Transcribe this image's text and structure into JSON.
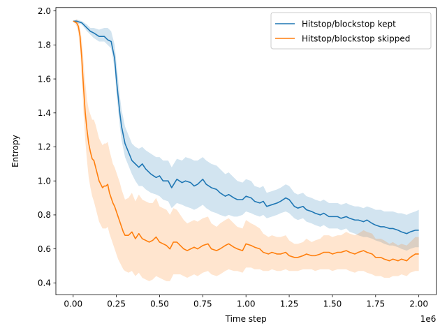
{
  "chart_data": {
    "type": "line",
    "title": "",
    "xlabel": "Time step",
    "ylabel": "Entropy",
    "x_offset_label": "1e6",
    "x_scale": 1000000,
    "xlim": [
      -0.1,
      2.1
    ],
    "ylim": [
      0.33,
      2.02
    ],
    "x_ticks": [
      0.0,
      0.25,
      0.5,
      0.75,
      1.0,
      1.25,
      1.5,
      1.75,
      2.0
    ],
    "x_tick_labels": [
      "0.00",
      "0.25",
      "0.50",
      "0.75",
      "1.00",
      "1.25",
      "1.50",
      "1.75",
      "2.00"
    ],
    "y_ticks": [
      0.4,
      0.6,
      0.8,
      1.0,
      1.2,
      1.4,
      1.6,
      1.8,
      2.0
    ],
    "y_tick_labels": [
      "0.4",
      "0.6",
      "0.8",
      "1.0",
      "1.2",
      "1.4",
      "1.6",
      "1.8",
      "2.0"
    ],
    "grid": false,
    "legend_position": "top-right",
    "series": [
      {
        "name": "Hitstop/blockstop kept",
        "color": "#1f77b4",
        "band_color": "#1f77b4",
        "x": [
          0.0,
          0.02,
          0.05,
          0.08,
          0.1,
          0.12,
          0.15,
          0.18,
          0.2,
          0.22,
          0.24,
          0.25,
          0.26,
          0.27,
          0.28,
          0.29,
          0.3,
          0.32,
          0.34,
          0.36,
          0.38,
          0.4,
          0.42,
          0.45,
          0.48,
          0.5,
          0.52,
          0.55,
          0.57,
          0.6,
          0.63,
          0.65,
          0.68,
          0.7,
          0.72,
          0.75,
          0.77,
          0.8,
          0.83,
          0.85,
          0.88,
          0.9,
          0.93,
          0.95,
          0.98,
          1.0,
          1.03,
          1.05,
          1.08,
          1.1,
          1.12,
          1.15,
          1.18,
          1.2,
          1.23,
          1.25,
          1.28,
          1.3,
          1.33,
          1.35,
          1.38,
          1.4,
          1.43,
          1.45,
          1.48,
          1.5,
          1.53,
          1.55,
          1.58,
          1.6,
          1.63,
          1.65,
          1.68,
          1.7,
          1.73,
          1.75,
          1.78,
          1.8,
          1.83,
          1.85,
          1.88,
          1.9,
          1.93,
          1.95,
          1.98,
          2.0
        ],
        "y": [
          1.94,
          1.94,
          1.93,
          1.9,
          1.88,
          1.87,
          1.85,
          1.85,
          1.83,
          1.82,
          1.72,
          1.6,
          1.5,
          1.4,
          1.32,
          1.27,
          1.22,
          1.17,
          1.12,
          1.1,
          1.08,
          1.1,
          1.07,
          1.04,
          1.02,
          1.03,
          1.0,
          1.0,
          0.96,
          1.01,
          0.99,
          1.0,
          0.99,
          0.97,
          0.98,
          1.01,
          0.98,
          0.96,
          0.95,
          0.93,
          0.91,
          0.92,
          0.9,
          0.89,
          0.89,
          0.91,
          0.9,
          0.88,
          0.87,
          0.88,
          0.85,
          0.86,
          0.87,
          0.88,
          0.9,
          0.89,
          0.85,
          0.84,
          0.85,
          0.83,
          0.82,
          0.81,
          0.8,
          0.81,
          0.79,
          0.79,
          0.79,
          0.78,
          0.79,
          0.78,
          0.77,
          0.77,
          0.76,
          0.77,
          0.75,
          0.74,
          0.73,
          0.73,
          0.72,
          0.72,
          0.71,
          0.7,
          0.69,
          0.7,
          0.71,
          0.71
        ],
        "lower": [
          1.94,
          1.93,
          1.92,
          1.88,
          1.86,
          1.84,
          1.82,
          1.82,
          1.8,
          1.78,
          1.66,
          1.52,
          1.42,
          1.32,
          1.24,
          1.19,
          1.14,
          1.09,
          1.04,
          1.0,
          0.97,
          0.97,
          0.95,
          0.93,
          0.92,
          0.91,
          0.89,
          0.88,
          0.84,
          0.87,
          0.86,
          0.85,
          0.84,
          0.83,
          0.84,
          0.86,
          0.84,
          0.82,
          0.81,
          0.8,
          0.79,
          0.8,
          0.79,
          0.79,
          0.8,
          0.82,
          0.81,
          0.8,
          0.79,
          0.8,
          0.78,
          0.79,
          0.8,
          0.81,
          0.82,
          0.81,
          0.78,
          0.77,
          0.78,
          0.76,
          0.75,
          0.74,
          0.73,
          0.74,
          0.72,
          0.72,
          0.72,
          0.71,
          0.72,
          0.7,
          0.69,
          0.68,
          0.67,
          0.67,
          0.66,
          0.65,
          0.64,
          0.63,
          0.62,
          0.62,
          0.61,
          0.6,
          0.59,
          0.6,
          0.61,
          0.61
        ],
        "upper": [
          1.94,
          1.95,
          1.94,
          1.92,
          1.9,
          1.9,
          1.89,
          1.9,
          1.9,
          1.88,
          1.8,
          1.7,
          1.6,
          1.5,
          1.42,
          1.37,
          1.32,
          1.27,
          1.22,
          1.2,
          1.19,
          1.2,
          1.18,
          1.16,
          1.14,
          1.14,
          1.12,
          1.12,
          1.08,
          1.13,
          1.12,
          1.14,
          1.13,
          1.12,
          1.12,
          1.14,
          1.12,
          1.1,
          1.09,
          1.07,
          1.04,
          1.05,
          1.02,
          1.0,
          0.99,
          1.01,
          1.0,
          0.97,
          0.96,
          0.97,
          0.93,
          0.94,
          0.95,
          0.96,
          0.98,
          0.97,
          0.93,
          0.92,
          0.93,
          0.91,
          0.9,
          0.89,
          0.88,
          0.89,
          0.87,
          0.87,
          0.87,
          0.86,
          0.87,
          0.86,
          0.85,
          0.85,
          0.84,
          0.85,
          0.84,
          0.83,
          0.83,
          0.82,
          0.82,
          0.82,
          0.81,
          0.81,
          0.8,
          0.81,
          0.82,
          0.83
        ]
      },
      {
        "name": "Hitstop/blockstop skipped",
        "color": "#ff7f0e",
        "band_color": "#ff7f0e",
        "x": [
          0.0,
          0.02,
          0.03,
          0.04,
          0.05,
          0.06,
          0.07,
          0.08,
          0.09,
          0.1,
          0.11,
          0.12,
          0.13,
          0.14,
          0.15,
          0.16,
          0.17,
          0.18,
          0.19,
          0.2,
          0.21,
          0.22,
          0.23,
          0.24,
          0.25,
          0.26,
          0.27,
          0.28,
          0.29,
          0.3,
          0.32,
          0.34,
          0.36,
          0.38,
          0.4,
          0.42,
          0.44,
          0.46,
          0.48,
          0.5,
          0.52,
          0.54,
          0.56,
          0.58,
          0.6,
          0.62,
          0.64,
          0.66,
          0.68,
          0.7,
          0.72,
          0.75,
          0.78,
          0.8,
          0.83,
          0.85,
          0.88,
          0.9,
          0.93,
          0.95,
          0.98,
          1.0,
          1.03,
          1.05,
          1.08,
          1.1,
          1.13,
          1.15,
          1.18,
          1.2,
          1.23,
          1.25,
          1.28,
          1.3,
          1.33,
          1.35,
          1.38,
          1.4,
          1.43,
          1.45,
          1.48,
          1.5,
          1.53,
          1.55,
          1.58,
          1.6,
          1.63,
          1.65,
          1.68,
          1.7,
          1.73,
          1.75,
          1.78,
          1.8,
          1.83,
          1.85,
          1.88,
          1.9,
          1.93,
          1.95,
          1.98,
          2.0
        ],
        "y": [
          1.94,
          1.93,
          1.91,
          1.85,
          1.72,
          1.55,
          1.4,
          1.3,
          1.22,
          1.17,
          1.13,
          1.12,
          1.08,
          1.04,
          1.0,
          0.98,
          0.96,
          0.97,
          0.97,
          0.98,
          0.93,
          0.9,
          0.87,
          0.85,
          0.82,
          0.79,
          0.76,
          0.73,
          0.7,
          0.68,
          0.68,
          0.7,
          0.66,
          0.69,
          0.66,
          0.65,
          0.64,
          0.65,
          0.67,
          0.64,
          0.63,
          0.62,
          0.6,
          0.64,
          0.64,
          0.62,
          0.6,
          0.59,
          0.6,
          0.61,
          0.6,
          0.62,
          0.63,
          0.6,
          0.59,
          0.6,
          0.62,
          0.63,
          0.61,
          0.6,
          0.59,
          0.63,
          0.62,
          0.61,
          0.6,
          0.58,
          0.57,
          0.58,
          0.57,
          0.57,
          0.58,
          0.56,
          0.55,
          0.55,
          0.56,
          0.57,
          0.56,
          0.56,
          0.57,
          0.58,
          0.58,
          0.57,
          0.58,
          0.58,
          0.59,
          0.58,
          0.57,
          0.58,
          0.59,
          0.58,
          0.57,
          0.55,
          0.55,
          0.54,
          0.53,
          0.54,
          0.53,
          0.54,
          0.53,
          0.55,
          0.57,
          0.57
        ],
        "lower": [
          1.94,
          1.91,
          1.87,
          1.78,
          1.6,
          1.4,
          1.24,
          1.12,
          1.02,
          0.96,
          0.91,
          0.88,
          0.84,
          0.8,
          0.76,
          0.74,
          0.72,
          0.72,
          0.72,
          0.73,
          0.69,
          0.66,
          0.63,
          0.6,
          0.57,
          0.54,
          0.52,
          0.5,
          0.48,
          0.47,
          0.46,
          0.47,
          0.44,
          0.46,
          0.43,
          0.42,
          0.41,
          0.42,
          0.44,
          0.43,
          0.42,
          0.41,
          0.41,
          0.45,
          0.45,
          0.45,
          0.44,
          0.43,
          0.44,
          0.45,
          0.44,
          0.46,
          0.47,
          0.45,
          0.44,
          0.45,
          0.47,
          0.48,
          0.47,
          0.47,
          0.46,
          0.49,
          0.49,
          0.48,
          0.48,
          0.47,
          0.47,
          0.48,
          0.47,
          0.47,
          0.48,
          0.47,
          0.47,
          0.47,
          0.48,
          0.48,
          0.48,
          0.47,
          0.48,
          0.48,
          0.48,
          0.47,
          0.48,
          0.48,
          0.48,
          0.47,
          0.46,
          0.47,
          0.47,
          0.46,
          0.45,
          0.44,
          0.44,
          0.43,
          0.43,
          0.44,
          0.44,
          0.45,
          0.44,
          0.46,
          0.47,
          0.47
        ],
        "upper": [
          1.94,
          1.95,
          1.94,
          1.9,
          1.83,
          1.7,
          1.58,
          1.48,
          1.42,
          1.39,
          1.36,
          1.36,
          1.33,
          1.29,
          1.25,
          1.23,
          1.21,
          1.22,
          1.22,
          1.23,
          1.18,
          1.14,
          1.1,
          1.08,
          1.05,
          1.02,
          0.99,
          0.95,
          0.92,
          0.89,
          0.9,
          0.93,
          0.88,
          0.92,
          0.89,
          0.88,
          0.87,
          0.87,
          0.9,
          0.85,
          0.84,
          0.83,
          0.8,
          0.84,
          0.83,
          0.8,
          0.77,
          0.75,
          0.76,
          0.77,
          0.76,
          0.78,
          0.79,
          0.75,
          0.73,
          0.75,
          0.77,
          0.78,
          0.75,
          0.73,
          0.72,
          0.77,
          0.75,
          0.74,
          0.72,
          0.69,
          0.67,
          0.68,
          0.67,
          0.67,
          0.68,
          0.65,
          0.63,
          0.63,
          0.64,
          0.66,
          0.64,
          0.65,
          0.66,
          0.68,
          0.68,
          0.67,
          0.68,
          0.68,
          0.7,
          0.69,
          0.68,
          0.69,
          0.71,
          0.7,
          0.69,
          0.66,
          0.66,
          0.65,
          0.63,
          0.64,
          0.62,
          0.63,
          0.62,
          0.64,
          0.67,
          0.67
        ]
      }
    ]
  }
}
